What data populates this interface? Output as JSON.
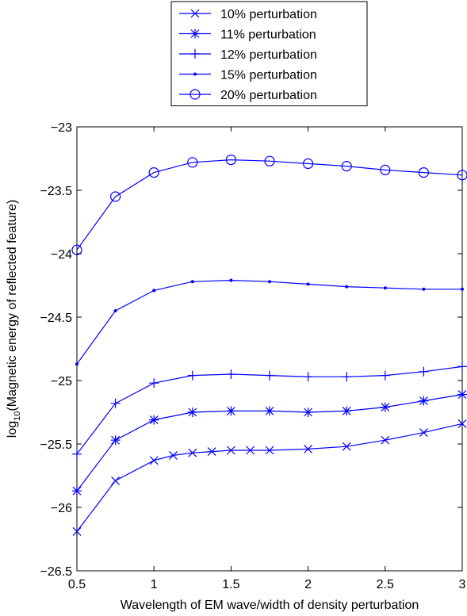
{
  "chart_data": {
    "type": "line",
    "xlabel": "Wavelength of EM wave/width of density perturbation",
    "ylabel_prefix": "log",
    "ylabel_sub": "10",
    "ylabel_rest": "(Magnetic energy of reflected feature)",
    "xlim": [
      0.5,
      3
    ],
    "ylim": [
      -26.5,
      -23
    ],
    "x_ticks": [
      0.5,
      1,
      1.5,
      2,
      2.5,
      3
    ],
    "y_ticks": [
      -23,
      -23.5,
      -24,
      -24.5,
      -25,
      -25.5,
      -26,
      -26.5
    ],
    "x_tick_labels": [
      "0.5",
      "1",
      "1.5",
      "2",
      "2.5",
      "3"
    ],
    "y_tick_labels": [
      "−23",
      "−23.5",
      "−24",
      "−24.5",
      "−25",
      "−25.5",
      "−26",
      "−26.5"
    ],
    "legend_position": "top-center",
    "color": "#0000ff",
    "series": [
      {
        "name": "10% perturbation",
        "marker": "x",
        "x": [
          0.5,
          0.75,
          1,
          1.125,
          1.25,
          1.375,
          1.5,
          1.625,
          1.75,
          2,
          2.25,
          2.5,
          2.75,
          3
        ],
        "y": [
          -26.19,
          -25.79,
          -25.63,
          -25.59,
          -25.57,
          -25.56,
          -25.55,
          -25.55,
          -25.55,
          -25.54,
          -25.52,
          -25.47,
          -25.41,
          -25.34
        ]
      },
      {
        "name": "11% perturbation",
        "marker": "star",
        "x": [
          0.5,
          0.75,
          1,
          1.25,
          1.5,
          1.75,
          2,
          2.25,
          2.5,
          2.75,
          3
        ],
        "y": [
          -25.87,
          -25.47,
          -25.31,
          -25.25,
          -25.24,
          -25.24,
          -25.25,
          -25.24,
          -25.21,
          -25.16,
          -25.11
        ]
      },
      {
        "name": "12% perturbation",
        "marker": "plus",
        "x": [
          0.5,
          0.75,
          1,
          1.25,
          1.5,
          1.75,
          2,
          2.25,
          2.5,
          2.75,
          3
        ],
        "y": [
          -25.58,
          -25.18,
          -25.02,
          -24.96,
          -24.95,
          -24.96,
          -24.97,
          -24.97,
          -24.96,
          -24.93,
          -24.89
        ]
      },
      {
        "name": "15% perturbation",
        "marker": "dot",
        "x": [
          0.5,
          0.75,
          1,
          1.25,
          1.5,
          1.75,
          2,
          2.25,
          2.5,
          2.75,
          3
        ],
        "y": [
          -24.87,
          -24.45,
          -24.29,
          -24.22,
          -24.21,
          -24.22,
          -24.24,
          -24.26,
          -24.27,
          -24.28,
          -24.28
        ]
      },
      {
        "name": "20% perturbation",
        "marker": "circle",
        "x": [
          0.5,
          0.75,
          1,
          1.25,
          1.5,
          1.75,
          2,
          2.25,
          2.5,
          2.75,
          3
        ],
        "y": [
          -23.97,
          -23.55,
          -23.36,
          -23.28,
          -23.26,
          -23.27,
          -23.29,
          -23.31,
          -23.34,
          -23.36,
          -23.38
        ]
      }
    ]
  }
}
